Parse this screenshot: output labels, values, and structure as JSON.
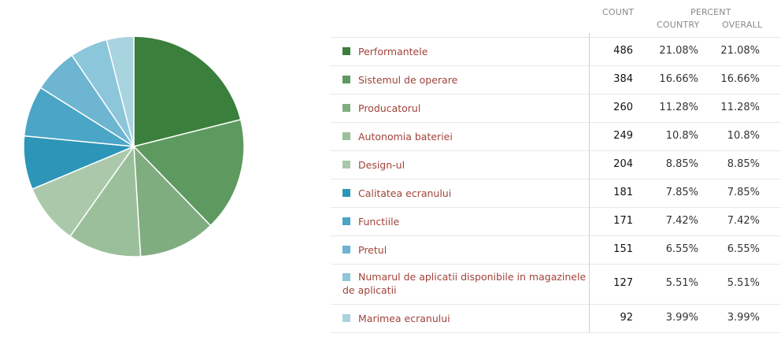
{
  "header": {
    "count": "COUNT",
    "percent": "PERCENT",
    "country": "COUNTRY",
    "overall": "OVERALL"
  },
  "chart_data": {
    "type": "pie",
    "title": "",
    "slices": [
      {
        "label": "Performantele",
        "value": 486,
        "country": "21.08%",
        "overall": "21.08%",
        "color": "#3a7f3b"
      },
      {
        "label": "Sistemul de operare",
        "value": 384,
        "country": "16.66%",
        "overall": "16.66%",
        "color": "#5e9a60"
      },
      {
        "label": "Producatorul",
        "value": 260,
        "country": "11.28%",
        "overall": "11.28%",
        "color": "#7fad80"
      },
      {
        "label": "Autonomia bateriei",
        "value": 249,
        "country": "10.8%",
        "overall": "10.8%",
        "color": "#9bbf9b"
      },
      {
        "label": "Design-ul",
        "value": 204,
        "country": "8.85%",
        "overall": "8.85%",
        "color": "#abc8ab"
      },
      {
        "label": "Calitatea ecranului",
        "value": 181,
        "country": "7.85%",
        "overall": "7.85%",
        "color": "#2d95b7"
      },
      {
        "label": "Functiile",
        "value": 171,
        "country": "7.42%",
        "overall": "7.42%",
        "color": "#4aa5c7"
      },
      {
        "label": "Pretul",
        "value": 151,
        "country": "6.55%",
        "overall": "6.55%",
        "color": "#6db5d0"
      },
      {
        "label": "Numarul de aplicatii disponibile in magazinele de aplicatii",
        "value": 127,
        "country": "5.51%",
        "overall": "5.51%",
        "color": "#8cc6da"
      },
      {
        "label": "Marimea ecranului",
        "value": 92,
        "country": "3.99%",
        "overall": "3.99%",
        "color": "#a8d4e0"
      }
    ]
  }
}
